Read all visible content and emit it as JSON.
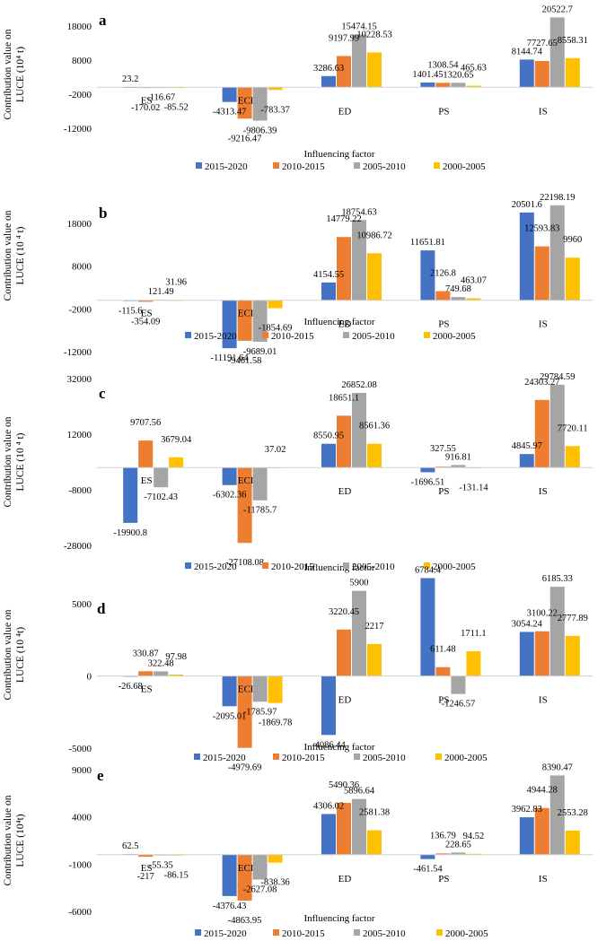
{
  "colors": {
    "2015-2020": "#4472C4",
    "2010-2015": "#ED7D31",
    "2005-2010": "#A5A5A5",
    "2000-2005": "#FFC000"
  },
  "chart_data": [
    {
      "type": "bar",
      "title": "a",
      "ylabel_line1": "Contribution value on",
      "ylabel_line2": "LUCE (10⁴ t)",
      "xlabel": "Influencing factor",
      "categories": [
        "ES",
        "ECI",
        "ED",
        "PS",
        "IS"
      ],
      "yticks": [
        "18000",
        "8000",
        "-2000",
        "-12000"
      ],
      "ytick_values": [
        18000,
        8000,
        -2000,
        -12000
      ],
      "ylim": [
        -16000,
        23000
      ],
      "series": [
        {
          "name": "2015-2020",
          "values": [
            23.2,
            -4313.47,
            3286.63,
            1401.45,
            8144.74
          ],
          "labels": [
            "23.2",
            "-4313.47",
            "3286.63",
            "1401.45",
            "8144.74"
          ]
        },
        {
          "name": "2010-2015",
          "values": [
            -170.02,
            -9216.47,
            9197.99,
            1308.54,
            7727.65
          ],
          "labels": [
            "-170.02",
            "-9216.47",
            "9197.99",
            "1308.54",
            "7727.65"
          ]
        },
        {
          "name": "2005-2010",
          "values": [
            -116.67,
            -9806.39,
            15474.15,
            1320.65,
            20522.7
          ],
          "labels": [
            "-116.67",
            "-9806.39",
            "15474.15",
            "1320.65",
            "20522.7"
          ]
        },
        {
          "name": "2000-2005",
          "values": [
            -85.52,
            -783.37,
            10228.53,
            465.63,
            8558.31
          ],
          "labels": [
            "-85.52",
            "-783.37",
            "10228.53",
            "465.63",
            "8558.31"
          ]
        }
      ]
    },
    {
      "type": "bar",
      "title": "b",
      "ylabel_line1": "Contribution value on",
      "ylabel_line2": "LUCE (10 ⁴ t)",
      "xlabel": "Influencing factor",
      "categories": [
        "ES",
        "ECI",
        "ED",
        "PS",
        "IS"
      ],
      "yticks": [
        "18000",
        "8000",
        "-2000",
        "-12000"
      ],
      "ytick_values": [
        18000,
        8000,
        -2000,
        -12000
      ],
      "ylim": [
        -12000,
        23000
      ],
      "series": [
        {
          "name": "2015-2020",
          "values": [
            -115.6,
            -11191.64,
            4154.55,
            11651.81,
            20501.6
          ],
          "labels": [
            "-115.6",
            "-11191.64",
            "4154.55",
            "11651.81",
            "20501.6"
          ]
        },
        {
          "name": "2010-2015",
          "values": [
            -354.09,
            -9461.58,
            14779.22,
            2126.8,
            12593.83
          ],
          "labels": [
            "-354.09",
            "-9461.58",
            "14779.22",
            "2126.8",
            "12593.83"
          ]
        },
        {
          "name": "2005-2010",
          "values": [
            121.49,
            -9689.01,
            18754.63,
            749.68,
            22198.19
          ],
          "labels": [
            "121.49",
            "-9689.01",
            "18754.63",
            "749.68",
            "22198.19"
          ]
        },
        {
          "name": "2000-2005",
          "values": [
            31.96,
            -1854.69,
            10986.72,
            463.07,
            9960
          ],
          "labels": [
            "31.96",
            "-1854.69",
            "10986.72",
            "463.07",
            "9960"
          ]
        }
      ]
    },
    {
      "type": "bar",
      "title": "c",
      "ylabel_line1": "Contribution value on",
      "ylabel_line2": "LUCE (10 ⁴ t)",
      "xlabel": "Influencing factor",
      "categories": [
        "ES",
        "ECI",
        "ED",
        "PS",
        "IS"
      ],
      "yticks": [
        "32000",
        "12000",
        "-8000",
        "-28000"
      ],
      "ytick_values": [
        32000,
        12000,
        -8000,
        -28000
      ],
      "ylim": [
        -28000,
        32000
      ],
      "series": [
        {
          "name": "2015-2020",
          "values": [
            -19900.8,
            -6302.36,
            8550.95,
            -1696.51,
            4845.97
          ],
          "labels": [
            "-19900.8",
            "-6302.36",
            "8550.95",
            "-1696.51",
            "4845.97"
          ]
        },
        {
          "name": "2010-2015",
          "values": [
            9707.56,
            -27108.08,
            18651.1,
            327.55,
            24303.27
          ],
          "labels": [
            "9707.56",
            "-27108.08",
            "18651.1",
            "327.55",
            "24303.27"
          ]
        },
        {
          "name": "2005-2010",
          "values": [
            -7102.43,
            -11785.7,
            26852.08,
            916.81,
            29784.59
          ],
          "labels": [
            "-7102.43",
            "-11785.7",
            "26852.08",
            "916.81",
            "29784.59"
          ]
        },
        {
          "name": "2000-2005",
          "values": [
            3679.04,
            37.02,
            8561.36,
            -131.14,
            7720.11
          ],
          "labels": [
            "3679.04",
            "37.02",
            "8561.36",
            "-131.14",
            "7720.11"
          ]
        }
      ]
    },
    {
      "type": "bar",
      "title": "d",
      "ylabel_line1": "Contribution value on",
      "ylabel_line2": "LUCE (10 ⁴t)",
      "xlabel": "Influencing factor",
      "categories": [
        "ES",
        "ECI",
        "ED",
        "PS",
        "IS"
      ],
      "yticks": [
        "5000",
        "0",
        "-5000"
      ],
      "ytick_values": [
        5000,
        0,
        -5000
      ],
      "ylim": [
        -5000,
        7000
      ],
      "series": [
        {
          "name": "2015-2020",
          "values": [
            -26.68,
            -2095.01,
            -4086.44,
            6784.4,
            3054.24
          ],
          "labels": [
            "-26.68",
            "-2095.01",
            "-4086.44",
            "6784.4",
            "3054.24"
          ]
        },
        {
          "name": "2010-2015",
          "values": [
            330.87,
            -4979.69,
            3220.45,
            611.48,
            3100.22
          ],
          "labels": [
            "330.87",
            "-4979.69",
            "3220.45",
            "611.48",
            "3100.22"
          ]
        },
        {
          "name": "2005-2010",
          "values": [
            322.48,
            -1785.97,
            5900,
            -1246.57,
            6185.33
          ],
          "labels": [
            "322.48",
            "-1785.97",
            "5900",
            "-1246.57",
            "6185.33"
          ]
        },
        {
          "name": "2000-2005",
          "values": [
            97.98,
            -1869.78,
            2217,
            1711.1,
            2777.89
          ],
          "labels": [
            "97.98",
            "-1869.78",
            "2217",
            "1711.1",
            "2777.89"
          ]
        }
      ]
    },
    {
      "type": "bar",
      "title": "e",
      "ylabel_line1": "Contribution value on",
      "ylabel_line2": "LUCE (10⁴t)",
      "xlabel": "Influencing factor",
      "categories": [
        "ES",
        "ECI",
        "ED",
        "PS",
        "IS"
      ],
      "yticks": [
        "9000",
        "4000",
        "-1000",
        "-6000"
      ],
      "ytick_values": [
        9000,
        4000,
        -1000,
        -6000
      ],
      "ylim": [
        -6000,
        9000
      ],
      "series": [
        {
          "name": "2015-2020",
          "values": [
            62.5,
            -4376.43,
            4306.02,
            -461.54,
            3962.83
          ],
          "labels": [
            "62.5",
            "-4376.43",
            "4306.02",
            "-461.54",
            "3962.83"
          ]
        },
        {
          "name": "2010-2015",
          "values": [
            -217,
            -4863.95,
            5490.36,
            136.79,
            4944.28
          ],
          "labels": [
            "-217",
            "-4863.95",
            "5490.36",
            "136.79",
            "4944.28"
          ]
        },
        {
          "name": "2005-2010",
          "values": [
            -55.35,
            -2627.08,
            5896.64,
            228.65,
            8390.47
          ],
          "labels": [
            "-55.35",
            "-2627.08",
            "5896.64",
            "228.65",
            "8390.47"
          ]
        },
        {
          "name": "2000-2005",
          "values": [
            -86.15,
            -838.36,
            2581.38,
            94.52,
            2553.28
          ],
          "labels": [
            "-86.15",
            "-838.36",
            "2581.38",
            "94.52",
            "2553.28"
          ]
        }
      ]
    }
  ]
}
